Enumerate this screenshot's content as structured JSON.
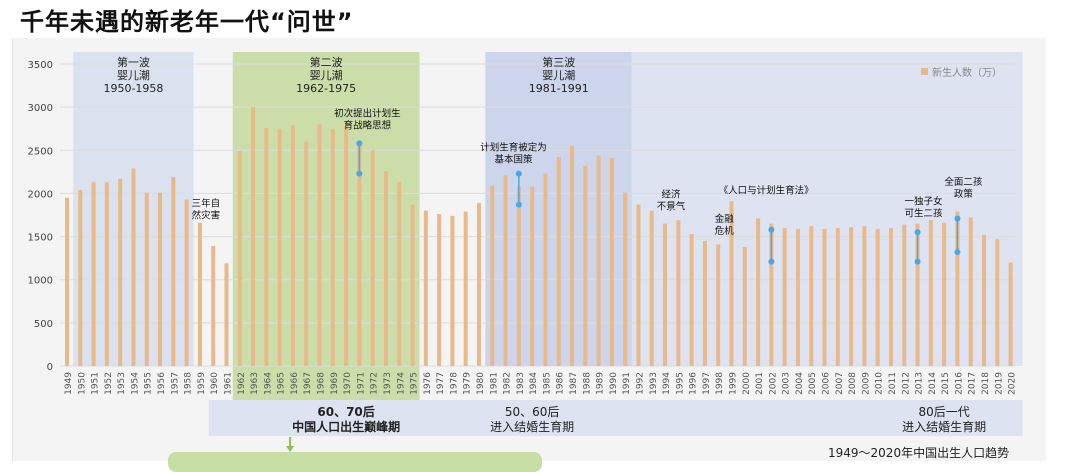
{
  "title": "千年未遇的新老年一代“问世”",
  "caption": "1949～2020年中国出生人口趋势",
  "colors": {
    "bar": "#e9b98a",
    "wave1": "#d8e0ef",
    "wave2": "#c8dca4",
    "wave3": "#c9d3ea",
    "lower_band": "#dde3f1",
    "marker": "#4aa7e8",
    "grid": "#dcdcdc"
  },
  "waves": [
    {
      "name": "第一波",
      "sub": "婴儿潮",
      "range": "1950-1958",
      "start": 1950,
      "end": 1958
    },
    {
      "name": "第二波",
      "sub": "婴儿潮",
      "range": "1962-1975",
      "start": 1962,
      "end": 1975
    },
    {
      "name": "第三波",
      "sub": "婴儿潮",
      "range": "1981-1991",
      "start": 1981,
      "end": 1991
    }
  ],
  "annotations": [
    {
      "lines": [
        "三年自",
        "然灾害"
      ],
      "year": 1959,
      "value": 1850
    },
    {
      "lines": [
        "初次提出计划生",
        "育战略思想"
      ],
      "year": 1971,
      "value": 2890
    },
    {
      "lines": [
        "计划生育被定为",
        "基本国策"
      ],
      "year": 1982,
      "value": 2500
    },
    {
      "lines": [
        "经济",
        "不景气"
      ],
      "year": 1994,
      "value": 1950
    },
    {
      "lines": [
        "金融",
        "危机"
      ],
      "year": 1998,
      "value": 1670
    },
    {
      "lines": [
        "《人口与计划生育法》"
      ],
      "year": 2001,
      "value": 2000
    },
    {
      "lines": [
        "一独子女",
        "可生二孩"
      ],
      "year": 2013,
      "value": 1870
    },
    {
      "lines": [
        "全面二孩",
        "政策"
      ],
      "year": 2016,
      "value": 2100
    }
  ],
  "markers": [
    {
      "year": 1971,
      "from": 2580,
      "to": 2230
    },
    {
      "year": 1983,
      "from": 2230,
      "to": 1870
    },
    {
      "year": 2002,
      "from": 1580,
      "to": 1210
    },
    {
      "year": 2013,
      "from": 1550,
      "to": 1210
    },
    {
      "year": 2016,
      "from": 1710,
      "to": 1320
    }
  ],
  "bottom_labels": [
    {
      "lines": [
        "60、70后",
        "中国人口出生巅峰期"
      ],
      "bold": true,
      "year": 1970
    },
    {
      "lines": [
        "50、60后",
        "进入结婚生育期"
      ],
      "bold": false,
      "year": 1984
    },
    {
      "lines": [
        "80后一代",
        "进入结婚生育期"
      ],
      "bold": false,
      "year": 2015
    }
  ],
  "chart_data": {
    "type": "bar",
    "legend": "新生人数（万）",
    "legend_position": "top-right",
    "ylim": [
      0,
      3500
    ],
    "yticks": [
      0,
      500,
      1000,
      1500,
      2000,
      2500,
      3000,
      3500
    ],
    "grid": true,
    "categories": [
      "1949",
      "1950",
      "1951",
      "1952",
      "1953",
      "1954",
      "1955",
      "1956",
      "1957",
      "1958",
      "1959",
      "1960",
      "1961",
      "1962",
      "1963",
      "1964",
      "1965",
      "1966",
      "1967",
      "1968",
      "1969",
      "1970",
      "1971",
      "1972",
      "1973",
      "1974",
      "1975",
      "1976",
      "1977",
      "1978",
      "1979",
      "1980",
      "1981",
      "1982",
      "1983",
      "1984",
      "1985",
      "1986",
      "1987",
      "1988",
      "1989",
      "1990",
      "1991",
      "1992",
      "1993",
      "1994",
      "1995",
      "1996",
      "1997",
      "1998",
      "1999",
      "2000",
      "2001",
      "2002",
      "2003",
      "2004",
      "2005",
      "2006",
      "2007",
      "2008",
      "2009",
      "2010",
      "2011",
      "2012",
      "2013",
      "2014",
      "2015",
      "2016",
      "2017",
      "2018",
      "2019",
      "2020"
    ],
    "values": [
      1950,
      2040,
      2130,
      2130,
      2170,
      2290,
      2010,
      2010,
      2190,
      1930,
      1660,
      1390,
      1190,
      2490,
      3000,
      2760,
      2750,
      2790,
      2600,
      2800,
      2750,
      2780,
      2600,
      2500,
      2260,
      2130,
      1870,
      1800,
      1760,
      1740,
      1790,
      1890,
      2090,
      2210,
      2080,
      2080,
      2230,
      2420,
      2550,
      2320,
      2440,
      2410,
      2010,
      1870,
      1800,
      1650,
      1690,
      1530,
      1450,
      1410,
      1910,
      1380,
      1710,
      1650,
      1600,
      1590,
      1620,
      1590,
      1600,
      1610,
      1620,
      1590,
      1600,
      1640,
      1650,
      1690,
      1660,
      1790,
      1720,
      1520,
      1470,
      1200
    ]
  }
}
